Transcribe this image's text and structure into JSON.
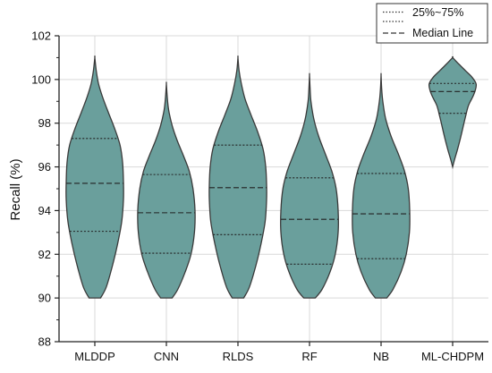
{
  "chart_data": {
    "type": "violin",
    "ylabel": "Recall (%)",
    "xlabel": "",
    "ylim": [
      88,
      102
    ],
    "yticks": [
      88,
      90,
      92,
      94,
      96,
      98,
      100,
      102
    ],
    "yticks_labels": [
      "88",
      "90",
      "92",
      "94",
      "96",
      "98",
      "100",
      "102"
    ],
    "grid": true,
    "legend": {
      "placement": "top-right",
      "entries": [
        {
          "label": "25%~75%",
          "style": "dotted"
        },
        {
          "label": "Median Line",
          "style": "dashed"
        }
      ]
    },
    "colors": {
      "fill": "#6a9f9c",
      "stroke": "#3a3a3a",
      "grid": "#d9d9d9"
    },
    "categories": [
      "MLDDP",
      "CNN",
      "RLDS",
      "RF",
      "NB",
      "ML-CHDPM"
    ],
    "series": [
      {
        "category": "MLDDP",
        "min": 90,
        "max": 101,
        "q1": 93.05,
        "median": 95.25,
        "q3": 97.3,
        "density": [
          [
            90,
            0.2
          ],
          [
            90.5,
            0.4
          ],
          [
            91.5,
            0.62
          ],
          [
            92.5,
            0.8
          ],
          [
            93.5,
            0.94
          ],
          [
            94.5,
            1.0
          ],
          [
            95.3,
            1.0
          ],
          [
            96.2,
            0.97
          ],
          [
            97,
            0.88
          ],
          [
            97.8,
            0.68
          ],
          [
            98.5,
            0.47
          ],
          [
            99.2,
            0.27
          ],
          [
            99.8,
            0.13
          ],
          [
            100.4,
            0.05
          ],
          [
            101,
            0
          ]
        ]
      },
      {
        "category": "CNN",
        "min": 90,
        "max": 99.8,
        "q1": 92.05,
        "median": 93.9,
        "q3": 95.65,
        "density": [
          [
            90,
            0.2
          ],
          [
            90.4,
            0.4
          ],
          [
            91.2,
            0.66
          ],
          [
            92,
            0.86
          ],
          [
            93,
            0.98
          ],
          [
            94,
            1.0
          ],
          [
            95,
            0.93
          ],
          [
            95.8,
            0.8
          ],
          [
            96.5,
            0.6
          ],
          [
            97.2,
            0.38
          ],
          [
            97.9,
            0.2
          ],
          [
            98.6,
            0.08
          ],
          [
            99.2,
            0.03
          ],
          [
            99.8,
            0
          ]
        ]
      },
      {
        "category": "RLDS",
        "min": 90,
        "max": 101,
        "q1": 92.9,
        "median": 95.05,
        "q3": 97.0,
        "density": [
          [
            90,
            0.2
          ],
          [
            90.5,
            0.4
          ],
          [
            91.5,
            0.63
          ],
          [
            92.5,
            0.81
          ],
          [
            93.5,
            0.95
          ],
          [
            94.5,
            1.0
          ],
          [
            95.2,
            1.0
          ],
          [
            96,
            0.97
          ],
          [
            96.8,
            0.88
          ],
          [
            97.6,
            0.69
          ],
          [
            98.4,
            0.45
          ],
          [
            99.1,
            0.25
          ],
          [
            99.8,
            0.12
          ],
          [
            100.4,
            0.04
          ],
          [
            101,
            0
          ]
        ]
      },
      {
        "category": "RF",
        "min": 90,
        "max": 100.2,
        "q1": 91.55,
        "median": 93.6,
        "q3": 95.5,
        "density": [
          [
            90,
            0.2
          ],
          [
            90.4,
            0.44
          ],
          [
            91.2,
            0.72
          ],
          [
            92,
            0.9
          ],
          [
            93,
            1.0
          ],
          [
            94,
            1.0
          ],
          [
            95,
            0.93
          ],
          [
            95.8,
            0.78
          ],
          [
            96.6,
            0.55
          ],
          [
            97.4,
            0.32
          ],
          [
            98.2,
            0.15
          ],
          [
            99,
            0.05
          ],
          [
            99.6,
            0.02
          ],
          [
            100.2,
            0
          ]
        ]
      },
      {
        "category": "NB",
        "min": 90,
        "max": 100.2,
        "q1": 91.8,
        "median": 93.85,
        "q3": 95.7,
        "density": [
          [
            90,
            0.2
          ],
          [
            90.4,
            0.42
          ],
          [
            91.2,
            0.7
          ],
          [
            92,
            0.88
          ],
          [
            93,
            0.99
          ],
          [
            94,
            1.0
          ],
          [
            95,
            0.95
          ],
          [
            95.8,
            0.82
          ],
          [
            96.6,
            0.6
          ],
          [
            97.4,
            0.35
          ],
          [
            98.2,
            0.16
          ],
          [
            99,
            0.06
          ],
          [
            99.6,
            0.02
          ],
          [
            100.2,
            0
          ]
        ]
      },
      {
        "category": "ML-CHDPM",
        "min": 96,
        "max": 101,
        "q1": 98.45,
        "median": 99.45,
        "q3": 99.82,
        "density": [
          [
            96,
            0
          ],
          [
            96.3,
            0.06
          ],
          [
            96.8,
            0.17
          ],
          [
            97.3,
            0.27
          ],
          [
            97.8,
            0.36
          ],
          [
            98.3,
            0.45
          ],
          [
            98.8,
            0.55
          ],
          [
            99.2,
            0.7
          ],
          [
            99.5,
            0.79
          ],
          [
            99.8,
            0.82
          ],
          [
            100.1,
            0.68
          ],
          [
            100.4,
            0.45
          ],
          [
            100.7,
            0.22
          ],
          [
            101,
            0
          ]
        ]
      }
    ]
  }
}
